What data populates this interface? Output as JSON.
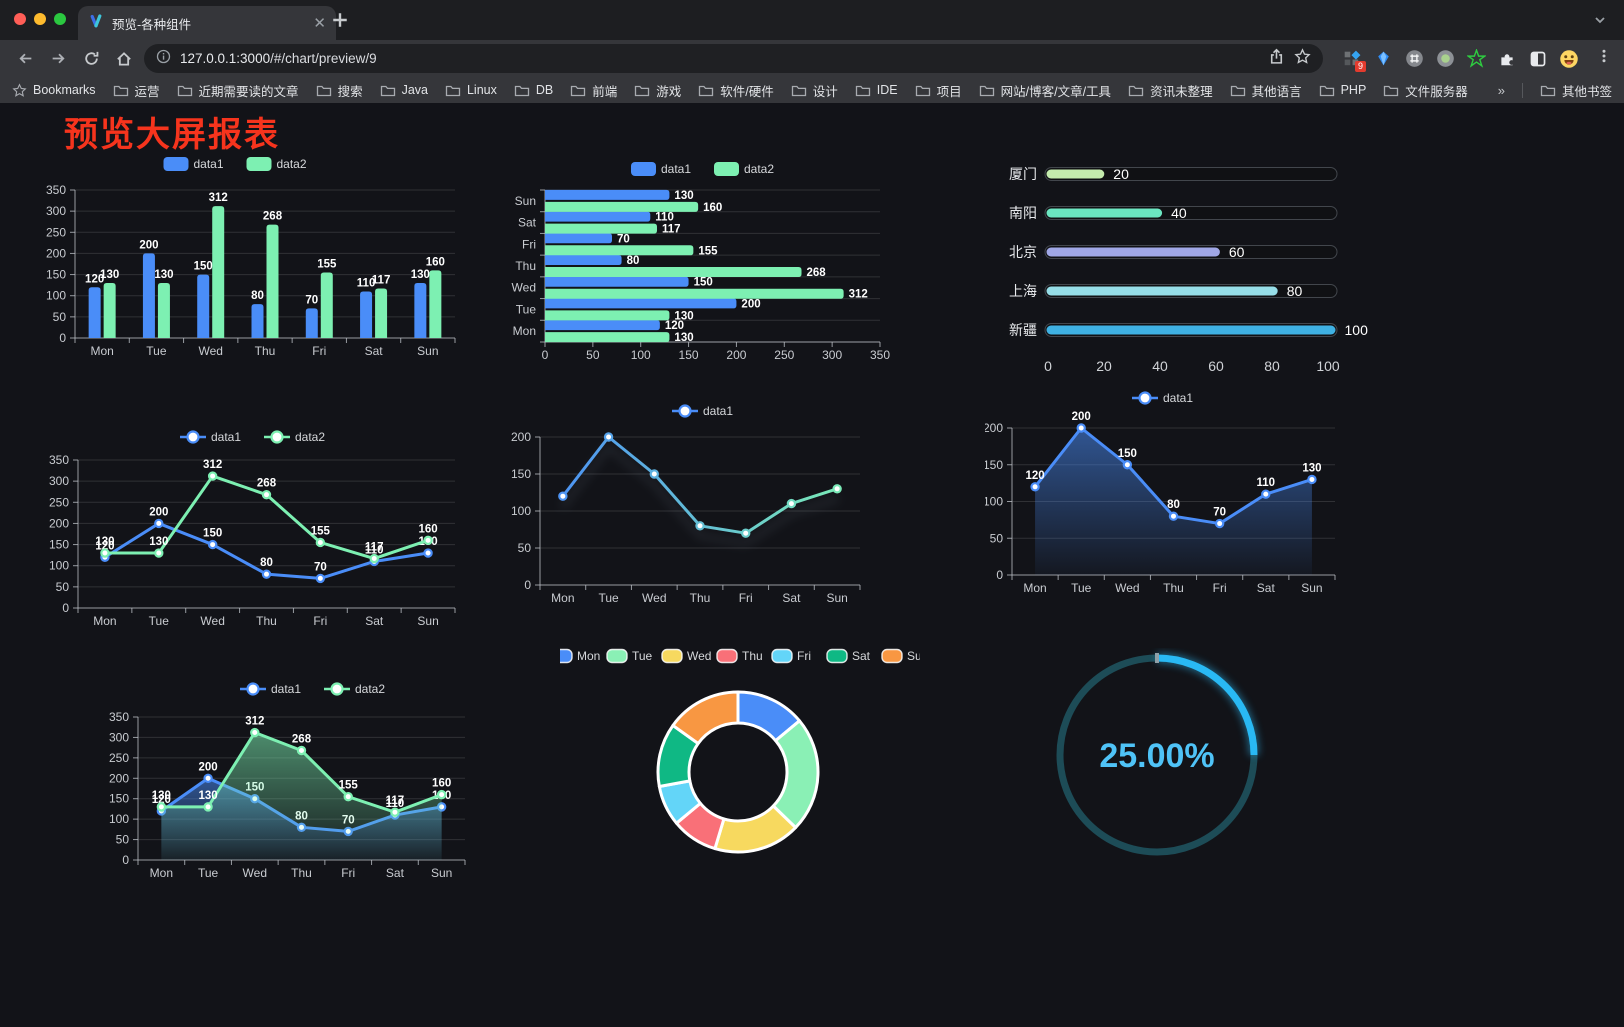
{
  "window": {
    "tab_title": "预览-各种组件",
    "url_host": "127.0.0.1:3000",
    "url_path": "/#/chart/preview/9",
    "new_tab_label": "+",
    "extension_badge": "9"
  },
  "bookmarks": {
    "label": "Bookmarks",
    "items": [
      "运营",
      "近期需要读的文章",
      "搜索",
      "Java",
      "Linux",
      "DB",
      "前端",
      "游戏",
      "软件/硬件",
      "设计",
      "IDE",
      "项目",
      "网站/博客/文章/工具",
      "资讯未整理",
      "其他语言",
      "PHP",
      "文件服务器"
    ],
    "overflow": "»",
    "other": "其他书签"
  },
  "page": {
    "title": "预览大屏报表",
    "title_color": "#f6341d",
    "background": "#121318"
  },
  "chart_data": [
    {
      "id": "bar-grouped",
      "type": "bar",
      "orientation": "vertical",
      "categories": [
        "Mon",
        "Tue",
        "Wed",
        "Thu",
        "Fri",
        "Sat",
        "Sun"
      ],
      "series": [
        {
          "name": "data1",
          "color": "#4a8df8",
          "values": [
            120,
            200,
            150,
            80,
            70,
            110,
            130
          ]
        },
        {
          "name": "data2",
          "color": "#7df0b2",
          "values": [
            130,
            130,
            312,
            268,
            155,
            117,
            160
          ]
        }
      ],
      "ylim": [
        0,
        350
      ],
      "ytick_step": 50,
      "grid": true,
      "legend_position": "top",
      "value_labels": true
    },
    {
      "id": "bar-horizontal",
      "type": "bar",
      "orientation": "horizontal",
      "categories": [
        "Mon",
        "Tue",
        "Wed",
        "Thu",
        "Fri",
        "Sat",
        "Sun"
      ],
      "series": [
        {
          "name": "data1",
          "color": "#4a8df8",
          "values": [
            120,
            200,
            150,
            80,
            70,
            110,
            130
          ]
        },
        {
          "name": "data2",
          "color": "#7df0b2",
          "values": [
            130,
            130,
            312,
            268,
            155,
            117,
            160
          ]
        }
      ],
      "xlim": [
        0,
        350
      ],
      "xtick_step": 50,
      "grid": true,
      "legend_position": "top",
      "value_labels": true
    },
    {
      "id": "progress",
      "type": "bar",
      "variant": "progress-capsule",
      "max": 100,
      "xticks": [
        0,
        20,
        40,
        60,
        80,
        100
      ],
      "items": [
        {
          "label": "厦门",
          "value": 20,
          "color": "#c4ebad"
        },
        {
          "label": "南阳",
          "value": 40,
          "color": "#6be6c1"
        },
        {
          "label": "北京",
          "value": 60,
          "color": "#a0a7e6"
        },
        {
          "label": "上海",
          "value": 80,
          "color": "#96dee8"
        },
        {
          "label": "新疆",
          "value": 100,
          "color": "#3fb1e3"
        }
      ]
    },
    {
      "id": "line-multi",
      "type": "line",
      "categories": [
        "Mon",
        "Tue",
        "Wed",
        "Thu",
        "Fri",
        "Sat",
        "Sun"
      ],
      "series": [
        {
          "name": "data1",
          "color": "#4a8df8",
          "values": [
            120,
            200,
            150,
            80,
            70,
            110,
            130
          ]
        },
        {
          "name": "data2",
          "color": "#7df0b2",
          "values": [
            130,
            130,
            312,
            268,
            155,
            117,
            160
          ]
        }
      ],
      "ylim": [
        0,
        350
      ],
      "ytick_step": 50,
      "grid": true,
      "legend_position": "top",
      "value_labels": true
    },
    {
      "id": "line-gradient",
      "type": "line",
      "categories": [
        "Mon",
        "Tue",
        "Wed",
        "Thu",
        "Fri",
        "Sat",
        "Sun"
      ],
      "series": [
        {
          "name": "data1",
          "gradient": [
            "#4a8df8",
            "#7df0b2"
          ],
          "values": [
            120,
            200,
            150,
            80,
            70,
            110,
            130
          ]
        }
      ],
      "ylim": [
        0,
        200
      ],
      "ytick_step": 50,
      "grid": true,
      "legend_position": "top",
      "value_labels": false,
      "shadow": true
    },
    {
      "id": "line-area",
      "type": "area",
      "categories": [
        "Mon",
        "Tue",
        "Wed",
        "Thu",
        "Fri",
        "Sat",
        "Sun"
      ],
      "series": [
        {
          "name": "data1",
          "color": "#4a8df8",
          "area": true,
          "values": [
            120,
            200,
            150,
            80,
            70,
            110,
            130
          ]
        }
      ],
      "ylim": [
        0,
        200
      ],
      "ytick_step": 50,
      "grid": true,
      "legend_position": "top",
      "value_labels": true
    },
    {
      "id": "line-area-multi",
      "type": "area",
      "categories": [
        "Mon",
        "Tue",
        "Wed",
        "Thu",
        "Fri",
        "Sat",
        "Sun"
      ],
      "series": [
        {
          "name": "data1",
          "color": "#4a8df8",
          "area": true,
          "values": [
            120,
            200,
            150,
            80,
            70,
            110,
            130
          ]
        },
        {
          "name": "data2",
          "color": "#7df0b2",
          "area": true,
          "values": [
            130,
            130,
            312,
            268,
            155,
            117,
            160
          ]
        }
      ],
      "ylim": [
        0,
        350
      ],
      "ytick_step": 50,
      "grid": true,
      "legend_position": "top",
      "value_labels": true
    },
    {
      "id": "donut",
      "type": "pie",
      "inner_radius_ratio": 0.61,
      "border_color": "#ffffff",
      "legend_position": "top",
      "items": [
        {
          "label": "Mon",
          "value": 120,
          "color": "#4a8df8"
        },
        {
          "label": "Tue",
          "value": 200,
          "color": "#8af0b5"
        },
        {
          "label": "Wed",
          "value": 150,
          "color": "#f7d95f"
        },
        {
          "label": "Thu",
          "value": 80,
          "color": "#f97078"
        },
        {
          "label": "Fri",
          "value": 70,
          "color": "#63d5f8"
        },
        {
          "label": "Sat",
          "value": 110,
          "color": "#0fb884"
        },
        {
          "label": "Sun",
          "value": 130,
          "color": "#f89742"
        }
      ]
    },
    {
      "id": "gauge",
      "type": "gauge",
      "value": 25,
      "max": 100,
      "label": "25.00%",
      "color": "#29b9f4",
      "track_color": "#1d4c57",
      "text_color": "#4fc3f7"
    }
  ]
}
